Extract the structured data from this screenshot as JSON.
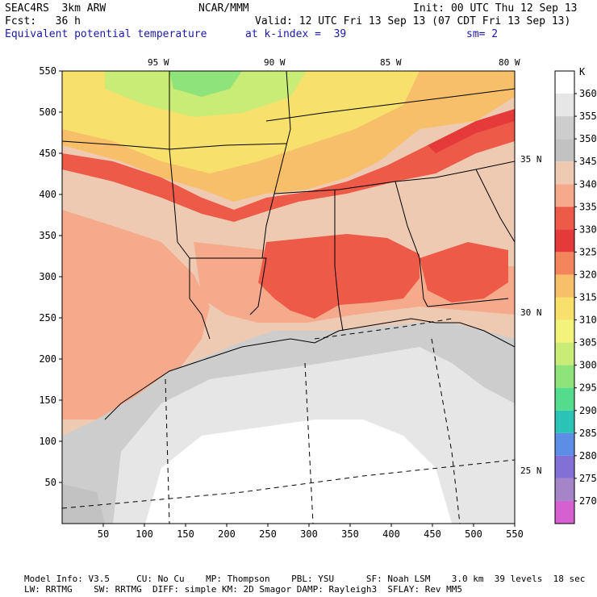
{
  "header": {
    "model": "SEAC4RS  3km ARW",
    "org": "NCAR/MMM",
    "init": "Init: 00 UTC Thu 12 Sep 13",
    "fcst": "Fcst:   36 h",
    "valid": "Valid: 12 UTC Fri 13 Sep 13 (07 CDT Fri 13 Sep 13)",
    "field": "Equivalent potential temperature",
    "level": "at k-index =  39",
    "smooth": "sm= 2"
  },
  "axes": {
    "x_ticks": [
      "50",
      "100",
      "150",
      "200",
      "250",
      "300",
      "350",
      "400",
      "450",
      "500",
      "550"
    ],
    "y_ticks": [
      "550",
      "500",
      "450",
      "400",
      "350",
      "300",
      "250",
      "200",
      "150",
      "100",
      "50"
    ],
    "lon_labels": [
      "95 W",
      "90 W",
      "85 W",
      "80 W"
    ],
    "lat_labels": [
      "35 N",
      "30 N",
      "25 N"
    ]
  },
  "colorbar": {
    "unit": "K",
    "levels": [
      "360",
      "355",
      "350",
      "345",
      "340",
      "335",
      "330",
      "325",
      "320",
      "315",
      "310",
      "305",
      "300",
      "295",
      "290",
      "285",
      "280",
      "275",
      "270"
    ],
    "colors": [
      "#ffffff",
      "#e6e6e6",
      "#cdcdcd",
      "#c2c2c2",
      "#eecab2",
      "#f5aa8c",
      "#ee5a48",
      "#e53a3a",
      "#f3855d",
      "#f8bf6a",
      "#f7e06c",
      "#f3f27a",
      "#c9ec77",
      "#8ee37a",
      "#54dc8c",
      "#2bc3b6",
      "#5d8ee6",
      "#8370d6",
      "#a585c8",
      "#d561d0"
    ]
  },
  "footer": {
    "line1": "Model Info: V3.5     CU: No Cu    MP: Thompson    PBL: YSU      SF: Noah LSM    3.0 km  39 levels  18 sec",
    "line2": "LW: RRTMG    SW: RRTMG  DIFF: simple KM: 2D Smagor DAMP: Rayleigh3  SFLAY: Rev MM5"
  }
}
